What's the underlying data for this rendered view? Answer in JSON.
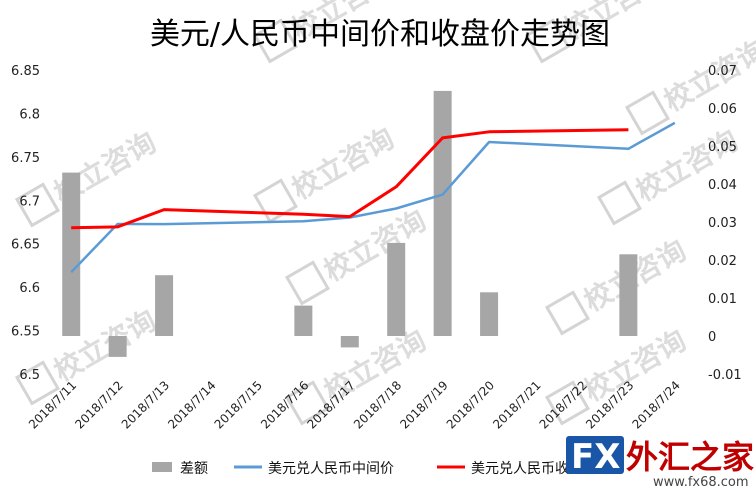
{
  "chart_data": {
    "type": "bar+line",
    "title": "美元/人民币中间价和收盘价走势图",
    "categories": [
      "2018/7/11",
      "2018/7/12",
      "2018/7/13",
      "2018/7/14",
      "2018/7/15",
      "2018/7/16",
      "2018/7/17",
      "2018/7/18",
      "2018/7/19",
      "2018/7/20",
      "2018/7/21",
      "2018/7/22",
      "2018/7/23",
      "2018/7/24"
    ],
    "y_left": {
      "min": 6.5,
      "max": 6.85,
      "step": 0.05,
      "ticks": [
        "6.5",
        "6.55",
        "6.6",
        "6.65",
        "6.7",
        "6.75",
        "6.8",
        "6.85"
      ]
    },
    "y_right": {
      "min": -0.01,
      "max": 0.07,
      "step": 0.01,
      "ticks": [
        "-0.01",
        "0",
        "0.01",
        "0.02",
        "0.03",
        "0.04",
        "0.05",
        "0.06",
        "0.07"
      ]
    },
    "series": [
      {
        "name": "差额",
        "type": "bar",
        "axis": "right",
        "color": "#a6a6a6",
        "values": [
          0.043,
          -0.0055,
          0.016,
          null,
          null,
          0.008,
          -0.003,
          0.0245,
          0.0645,
          0.0115,
          null,
          null,
          0.0215,
          null
        ]
      },
      {
        "name": "美元兑人民币中间价",
        "type": "line",
        "axis": "left",
        "color": "#5b9bd5",
        "values": [
          6.6172,
          6.6727,
          6.6726,
          null,
          null,
          6.6758,
          6.6802,
          6.6906,
          6.7066,
          6.7671,
          null,
          null,
          6.7593,
          6.7891
        ]
      },
      {
        "name": "美元兑人民币收盘价",
        "type": "line",
        "axis": "left",
        "color": "#ff0000",
        "values": [
          6.6684,
          6.6694,
          6.6893,
          null,
          null,
          6.684,
          6.6812,
          6.7155,
          6.7718,
          6.7789,
          null,
          null,
          6.7811,
          null
        ]
      }
    ],
    "legend_position": "bottom",
    "grid": false
  },
  "legend": {
    "bar_label": "差额",
    "mid_label": "美元兑人民币中间价",
    "close_label": "美元兑人民币收"
  },
  "watermark": {
    "text": "校立咨询"
  },
  "logo": {
    "fx": "FX",
    "cn": "外汇之家",
    "url": "www.fx68.com"
  }
}
